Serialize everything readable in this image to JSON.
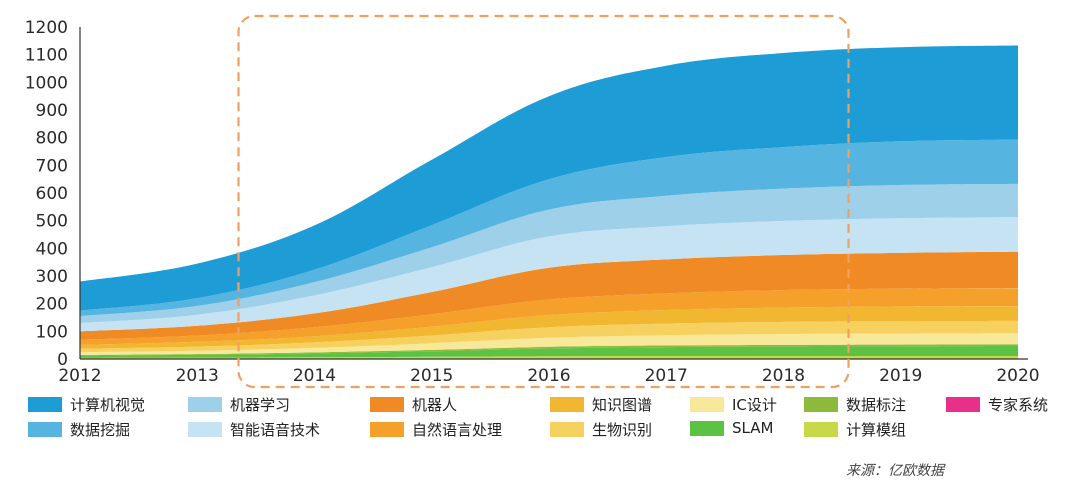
{
  "chart_data": {
    "type": "area",
    "stacked": true,
    "x": [
      "2012",
      "2013",
      "2014",
      "2015",
      "2016",
      "2017",
      "2018",
      "2019",
      "2020"
    ],
    "ylim": [
      0,
      1200
    ],
    "yticks": [
      0,
      100,
      200,
      300,
      400,
      500,
      600,
      700,
      800,
      900,
      1000,
      1100,
      1200
    ],
    "highlight_range": [
      "2014",
      "2018"
    ],
    "series": [
      {
        "name": "计算模组",
        "color": "#c7d94a",
        "values": [
          4,
          5,
          6,
          8,
          10,
          11,
          11,
          11,
          11
        ]
      },
      {
        "name": "SLAM",
        "color": "#5cc243",
        "values": [
          8,
          10,
          14,
          20,
          28,
          32,
          34,
          35,
          36
        ]
      },
      {
        "name": "数据标注",
        "color": "#8dba3a",
        "values": [
          3,
          3,
          4,
          5,
          6,
          6,
          6,
          6,
          6
        ]
      },
      {
        "name": "IC设计",
        "color": "#f7e89a",
        "values": [
          10,
          12,
          16,
          24,
          33,
          37,
          39,
          40,
          40
        ]
      },
      {
        "name": "生物识别",
        "color": "#f7d160",
        "values": [
          12,
          15,
          20,
          28,
          38,
          42,
          44,
          45,
          45
        ]
      },
      {
        "name": "知识图谱",
        "color": "#f2b730",
        "values": [
          14,
          17,
          22,
          32,
          44,
          49,
          52,
          53,
          53
        ]
      },
      {
        "name": "自然语言处理",
        "color": "#f5a02a",
        "values": [
          19,
          23,
          33,
          45,
          56,
          60,
          63,
          64,
          65
        ]
      },
      {
        "name": "专家系统",
        "color": "#e8308a",
        "values": [
          0,
          0,
          0,
          0,
          0,
          0,
          0,
          0,
          0
        ]
      },
      {
        "name": "机器人",
        "color": "#f08a24",
        "values": [
          30,
          35,
          50,
          80,
          115,
          123,
          127,
          130,
          132
        ]
      },
      {
        "name": "智能语音技术",
        "color": "#c6e3f4",
        "values": [
          30,
          40,
          65,
          90,
          113,
          120,
          123,
          125,
          125
        ]
      },
      {
        "name": "机器学习",
        "color": "#9fd0ea",
        "values": [
          25,
          32,
          48,
          72,
          97,
          110,
          117,
          120,
          120
        ]
      },
      {
        "name": "数据挖掘",
        "color": "#55b5e0",
        "values": [
          20,
          28,
          45,
          80,
          110,
          140,
          150,
          158,
          160
        ]
      },
      {
        "name": "计算机视觉",
        "color": "#1e9cd6",
        "values": [
          105,
          125,
          160,
          236,
          300,
          330,
          340,
          340,
          340
        ]
      }
    ]
  },
  "legend": [
    {
      "label": "计算机视觉"
    },
    {
      "label": "机器学习"
    },
    {
      "label": "机器人"
    },
    {
      "label": "知识图谱"
    },
    {
      "label": "IC设计"
    },
    {
      "label": "数据标注"
    },
    {
      "label": "专家系统"
    },
    {
      "label": "数据挖掘"
    },
    {
      "label": "智能语音技术"
    },
    {
      "label": "自然语言处理"
    },
    {
      "label": "生物识别"
    },
    {
      "label": "SLAM"
    },
    {
      "label": "计算模组"
    }
  ],
  "colors": {
    "计算机视觉": "#1e9cd6",
    "机器学习": "#9fd0ea",
    "机器人": "#f08a24",
    "知识图谱": "#f2b730",
    "IC设计": "#f7e89a",
    "数据标注": "#8dba3a",
    "专家系统": "#e8308a",
    "数据挖掘": "#55b5e0",
    "智能语音技术": "#c6e3f4",
    "自然语言处理": "#f5a02a",
    "生物识别": "#f7d160",
    "SLAM": "#5cc243",
    "计算模组": "#c7d94a",
    "highlight": "#f0a060"
  },
  "source": "来源：亿欧数据"
}
